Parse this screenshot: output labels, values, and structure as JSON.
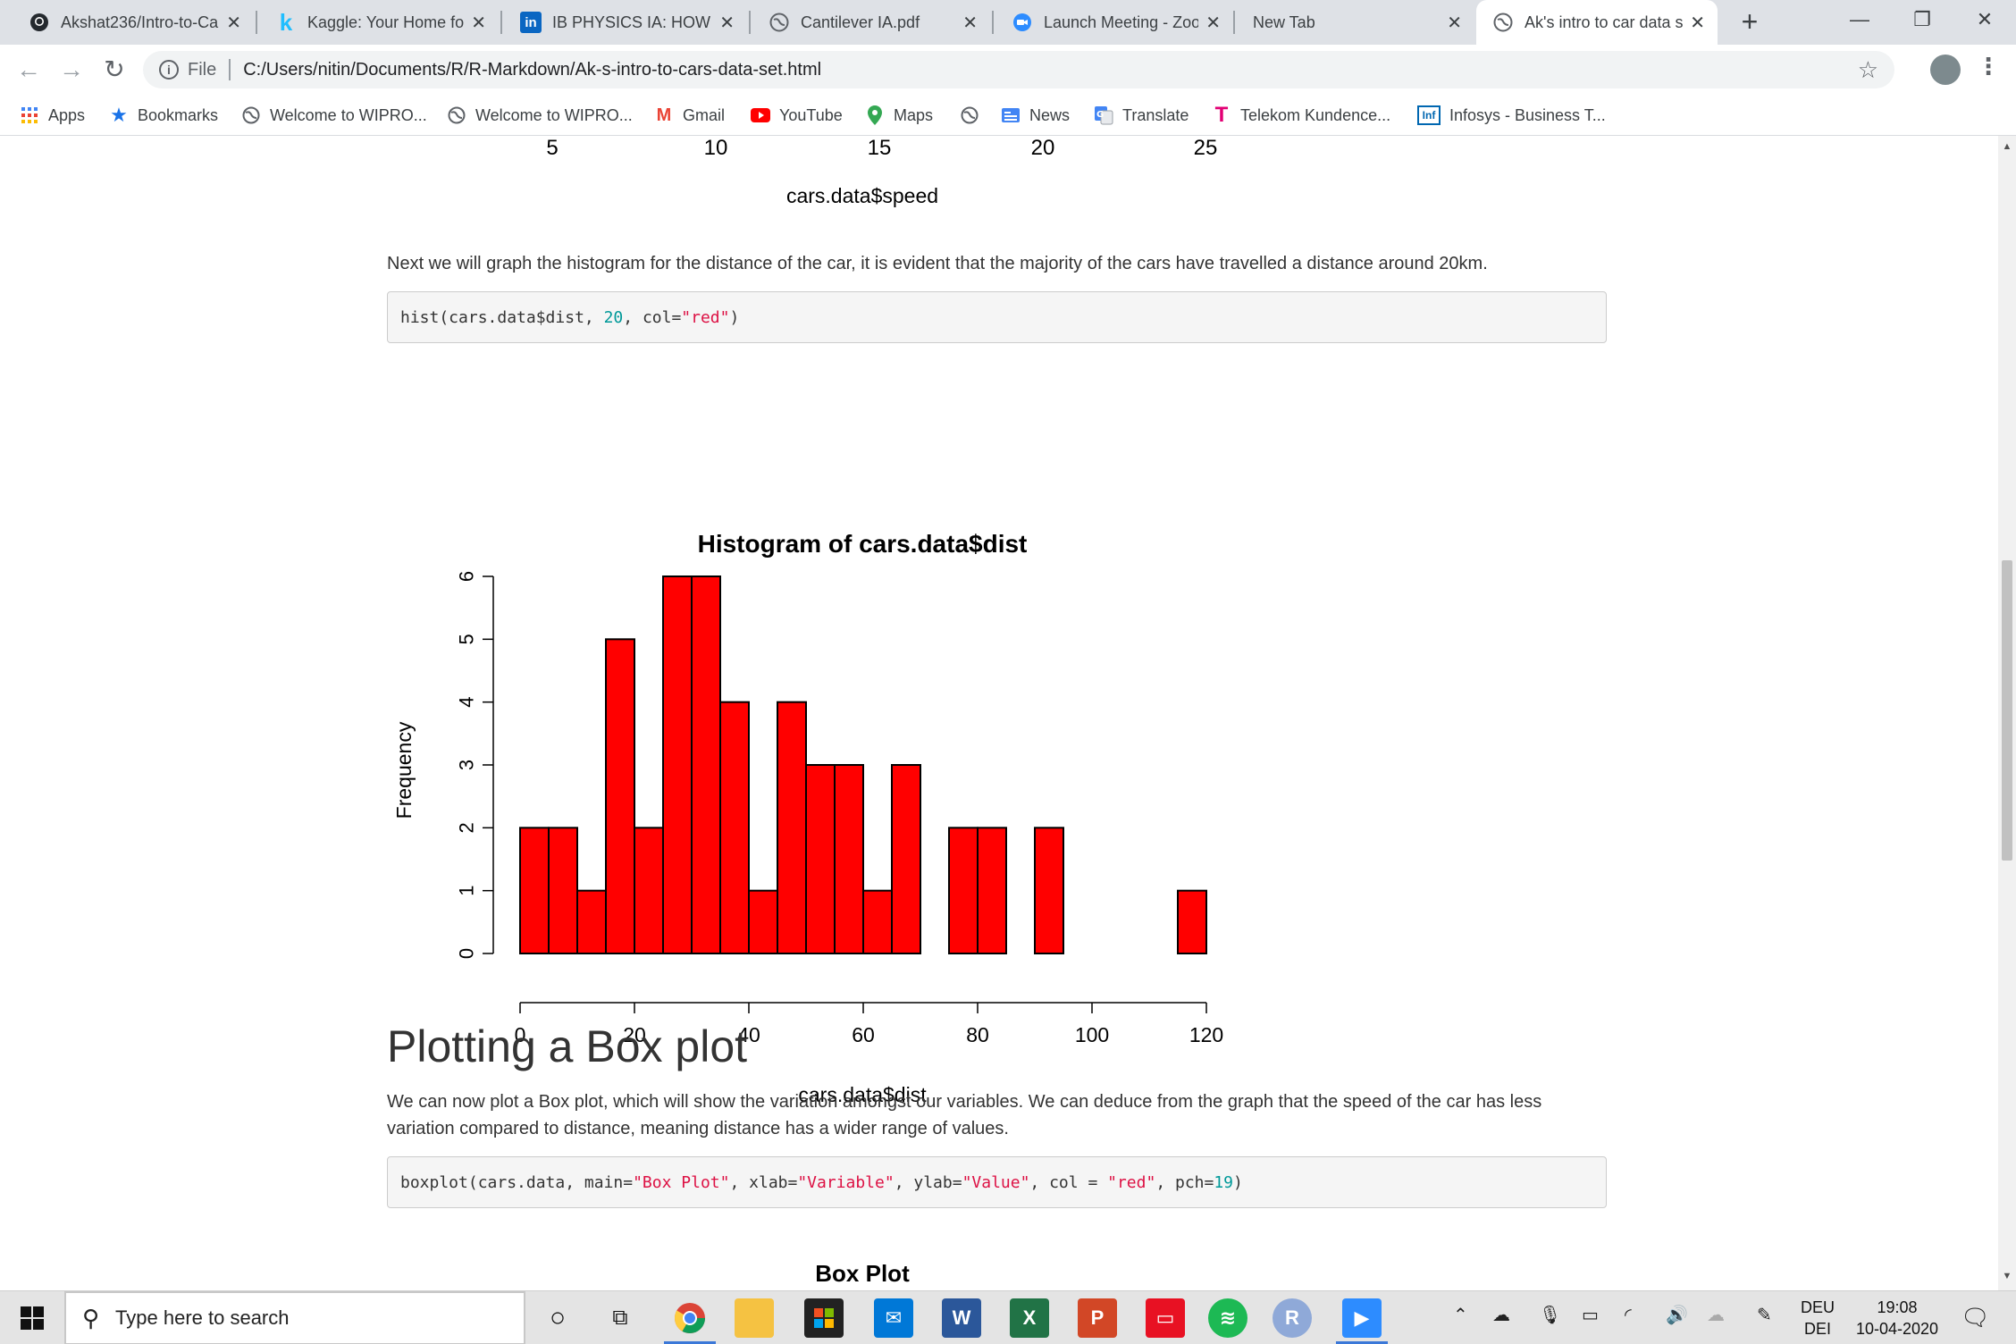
{
  "browser": {
    "tabs": [
      {
        "title": "Akshat236/Intro-to-Ca",
        "icon": "github-icon",
        "active": false
      },
      {
        "title": "Kaggle: Your Home fo",
        "icon": "kaggle-icon",
        "active": false
      },
      {
        "title": "IB PHYSICS IA: HOW T",
        "icon": "linkedin-icon",
        "active": false
      },
      {
        "title": "Cantilever IA.pdf",
        "icon": "globe-icon",
        "active": false
      },
      {
        "title": "Launch Meeting - Zoo",
        "icon": "zoom-icon",
        "active": false
      },
      {
        "title": "New Tab",
        "icon": "",
        "active": false
      },
      {
        "title": "Ak's intro to car data s",
        "icon": "globe-icon",
        "active": true
      }
    ],
    "address": {
      "scheme": "File",
      "url": "C:/Users/nitin/Documents/R/R-Markdown/Ak-s-intro-to-cars-data-set.html"
    },
    "bookmarks": [
      {
        "label": "Apps",
        "icon": "apps-grid-icon"
      },
      {
        "label": "Bookmarks",
        "icon": "star-icon"
      },
      {
        "label": "Welcome to WIPRO...",
        "icon": "globe-icon"
      },
      {
        "label": "Welcome to WIPRO...",
        "icon": "globe-icon"
      },
      {
        "label": "Gmail",
        "icon": "gmail-icon"
      },
      {
        "label": "YouTube",
        "icon": "youtube-icon"
      },
      {
        "label": "Maps",
        "icon": "maps-pin-icon"
      },
      {
        "label": "",
        "icon": "globe-icon"
      },
      {
        "label": "News",
        "icon": "google-news-icon"
      },
      {
        "label": "Translate",
        "icon": "google-translate-icon"
      },
      {
        "label": "Telekom Kundence...",
        "icon": "telekom-icon"
      },
      {
        "label": "Infosys - Business T...",
        "icon": "infosys-icon"
      }
    ]
  },
  "page": {
    "prev_chart": {
      "x_ticks": [
        "5",
        "10",
        "15",
        "20",
        "25"
      ],
      "xlabel": "cars.data$speed"
    },
    "para_hist": "Next we will graph the histogram for the distance of the car, it is evident that the majority of the cars have travelled a distance around 20km.",
    "code_hist": {
      "fn": "hist(cars.data$dist, ",
      "num": "20",
      "mid": ", col=",
      "str": "\"red\"",
      "end": ")"
    },
    "section_heading": "Plotting a Box plot",
    "para_box": "We can now plot a Box plot, which will show the variation amongst our variables. We can deduce from the graph that the speed of the car has less variation compared to distance, meaning distance has a wider range of values.",
    "code_box": {
      "a": "boxplot(cars.data, main=",
      "s1": "\"Box Plot\"",
      "b": ", xlab=",
      "s2": "\"Variable\"",
      "c": ", ylab=",
      "s3": "\"Value\"",
      "d": ", col = ",
      "s4": "\"red\"",
      "e": ", pch=",
      "n1": "19",
      "f": ")"
    },
    "next_chart_title": "Box Plot"
  },
  "chart_data": {
    "type": "bar",
    "title": "Histogram of cars.data$dist",
    "xlabel": "cars.data$dist",
    "ylabel": "Frequency",
    "bin_width": 5,
    "bin_starts": [
      0,
      5,
      10,
      15,
      20,
      25,
      30,
      35,
      40,
      45,
      50,
      55,
      60,
      65,
      70,
      75,
      80,
      85,
      90,
      95,
      100,
      105,
      110,
      115
    ],
    "values": [
      2,
      2,
      1,
      5,
      2,
      6,
      6,
      4,
      1,
      4,
      3,
      3,
      1,
      3,
      0,
      2,
      2,
      0,
      2,
      0,
      0,
      0,
      0,
      1
    ],
    "xlim": [
      0,
      120
    ],
    "ylim": [
      0,
      6
    ],
    "x_ticks": [
      0,
      20,
      40,
      60,
      80,
      100,
      120
    ],
    "y_ticks": [
      0,
      1,
      2,
      3,
      4,
      5,
      6
    ],
    "bar_color": "#ff0000",
    "grid": false
  },
  "taskbar": {
    "search_placeholder": "Type here to search",
    "lang_top": "DEU",
    "lang_bottom": "DEI",
    "time": "19:08",
    "date": "10-04-2020"
  },
  "colors": {
    "accent": "#3b78d8",
    "bar": "#ff0000",
    "code_string": "#dd1144",
    "code_number": "#009999"
  }
}
